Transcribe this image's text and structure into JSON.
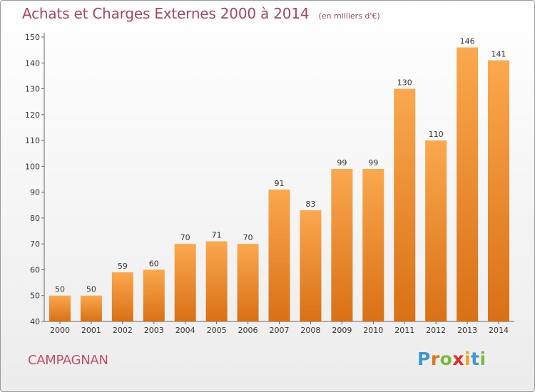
{
  "title": "Achats et Charges Externes 2000 à 2014",
  "subtitle": "(en milliers d'€)",
  "commune": "CAMPAGNAN",
  "logo": {
    "letters": [
      "P",
      "r",
      "o",
      "x",
      "i",
      "t",
      "i"
    ],
    "colors": [
      "#3f97d6",
      "#e8701b",
      "#7cba3c",
      "#e8272a",
      "#f0a51f",
      "#3f97d6",
      "#7cba3c"
    ]
  },
  "colors": {
    "bar_top": "#fba84e",
    "bar_bottom": "#d97015",
    "title": "#a64464"
  },
  "chart_data": {
    "type": "bar",
    "categories": [
      "2000",
      "2001",
      "2002",
      "2003",
      "2004",
      "2005",
      "2006",
      "2007",
      "2008",
      "2009",
      "2010",
      "2011",
      "2012",
      "2013",
      "2014"
    ],
    "values": [
      50,
      50,
      59,
      60,
      70,
      71,
      70,
      91,
      83,
      99,
      99,
      130,
      110,
      146,
      141
    ],
    "title": "Achats et Charges Externes 2000 à 2014",
    "xlabel": "",
    "ylabel": "",
    "ylim": [
      40,
      150
    ],
    "yticks": [
      40,
      50,
      60,
      70,
      80,
      90,
      100,
      110,
      120,
      130,
      140,
      150
    ],
    "grid": false,
    "data_labels": true
  }
}
